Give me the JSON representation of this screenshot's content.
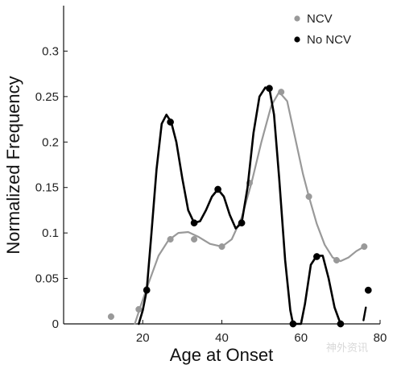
{
  "chart_data": {
    "type": "line",
    "xlabel": "Age at Onset",
    "ylabel": "Normalized Frequency",
    "xlim": [
      0,
      80
    ],
    "ylim": [
      0,
      0.35
    ],
    "xticks": [
      20,
      40,
      60,
      80
    ],
    "xtick_labels": [
      "20",
      "40",
      "60",
      "80"
    ],
    "yticks": [
      0,
      0.05,
      0.1,
      0.15,
      0.2,
      0.25,
      0.3
    ],
    "ytick_labels": [
      "0",
      "0.05",
      "0.1",
      "0.15",
      "0.2",
      "0.25",
      "0.3"
    ],
    "grid": false,
    "legend_position": "top-right",
    "series": [
      {
        "name": "NCV",
        "color": "#999999",
        "points": [
          {
            "x": 12,
            "y": 0.008
          },
          {
            "x": 19,
            "y": 0.016
          },
          {
            "x": 21,
            "y": 0.038
          },
          {
            "x": 27,
            "y": 0.093
          },
          {
            "x": 33,
            "y": 0.093
          },
          {
            "x": 40,
            "y": 0.085
          },
          {
            "x": 47,
            "y": 0.155
          },
          {
            "x": 55,
            "y": 0.255
          },
          {
            "x": 62,
            "y": 0.14
          },
          {
            "x": 69,
            "y": 0.07
          },
          {
            "x": 76,
            "y": 0.085
          }
        ],
        "curve": [
          [
            18,
            0
          ],
          [
            19.5,
            0.02
          ],
          [
            21.5,
            0.045
          ],
          [
            24,
            0.075
          ],
          [
            26.5,
            0.092
          ],
          [
            29,
            0.1
          ],
          [
            31.5,
            0.101
          ],
          [
            34,
            0.096
          ],
          [
            37,
            0.088
          ],
          [
            40,
            0.085
          ],
          [
            42.5,
            0.093
          ],
          [
            45,
            0.117
          ],
          [
            47.5,
            0.155
          ],
          [
            50,
            0.2
          ],
          [
            52.5,
            0.24
          ],
          [
            54.5,
            0.255
          ],
          [
            56.5,
            0.245
          ],
          [
            58.5,
            0.205
          ],
          [
            60.5,
            0.165
          ],
          [
            62,
            0.14
          ],
          [
            64,
            0.11
          ],
          [
            66,
            0.087
          ],
          [
            68,
            0.073
          ],
          [
            70,
            0.069
          ],
          [
            72,
            0.073
          ],
          [
            74,
            0.08
          ],
          [
            76,
            0.085
          ]
        ]
      },
      {
        "name": "No NCV",
        "color": "#000000",
        "points": [
          {
            "x": 21,
            "y": 0.037
          },
          {
            "x": 27,
            "y": 0.222
          },
          {
            "x": 33,
            "y": 0.111
          },
          {
            "x": 39,
            "y": 0.148
          },
          {
            "x": 45,
            "y": 0.111
          },
          {
            "x": 52,
            "y": 0.259
          },
          {
            "x": 58,
            "y": 0
          },
          {
            "x": 64,
            "y": 0.074
          },
          {
            "x": 70,
            "y": 0
          },
          {
            "x": 77,
            "y": 0.037
          }
        ],
        "curve": [
          [
            19,
            0
          ],
          [
            20,
            0.015
          ],
          [
            21,
            0.037
          ],
          [
            22.2,
            0.1
          ],
          [
            23.5,
            0.17
          ],
          [
            24.8,
            0.22
          ],
          [
            26,
            0.23
          ],
          [
            27.2,
            0.222
          ],
          [
            28.5,
            0.2
          ],
          [
            30,
            0.16
          ],
          [
            31.5,
            0.125
          ],
          [
            33,
            0.111
          ],
          [
            34.5,
            0.113
          ],
          [
            36,
            0.125
          ],
          [
            37.5,
            0.14
          ],
          [
            39,
            0.148
          ],
          [
            40.5,
            0.14
          ],
          [
            42,
            0.12
          ],
          [
            43.5,
            0.105
          ],
          [
            45,
            0.111
          ],
          [
            46.5,
            0.15
          ],
          [
            48,
            0.21
          ],
          [
            49.5,
            0.25
          ],
          [
            51,
            0.26
          ],
          [
            52,
            0.259
          ],
          [
            53.2,
            0.23
          ],
          [
            54.5,
            0.16
          ],
          [
            56,
            0.07
          ],
          [
            57.3,
            0.015
          ],
          [
            58,
            0
          ],
          [
            59,
            0
          ],
          [
            60,
            0
          ],
          [
            61,
            0.022
          ],
          [
            62.5,
            0.065
          ],
          [
            64,
            0.075
          ],
          [
            65.5,
            0.075
          ],
          [
            67,
            0.05
          ],
          [
            68.5,
            0.018
          ],
          [
            70,
            0
          ]
        ],
        "tail": [
          [
            75.8,
            0.004
          ],
          [
            76.4,
            0.018
          ]
        ]
      }
    ]
  },
  "watermark": {
    "text": "神外资讯"
  }
}
